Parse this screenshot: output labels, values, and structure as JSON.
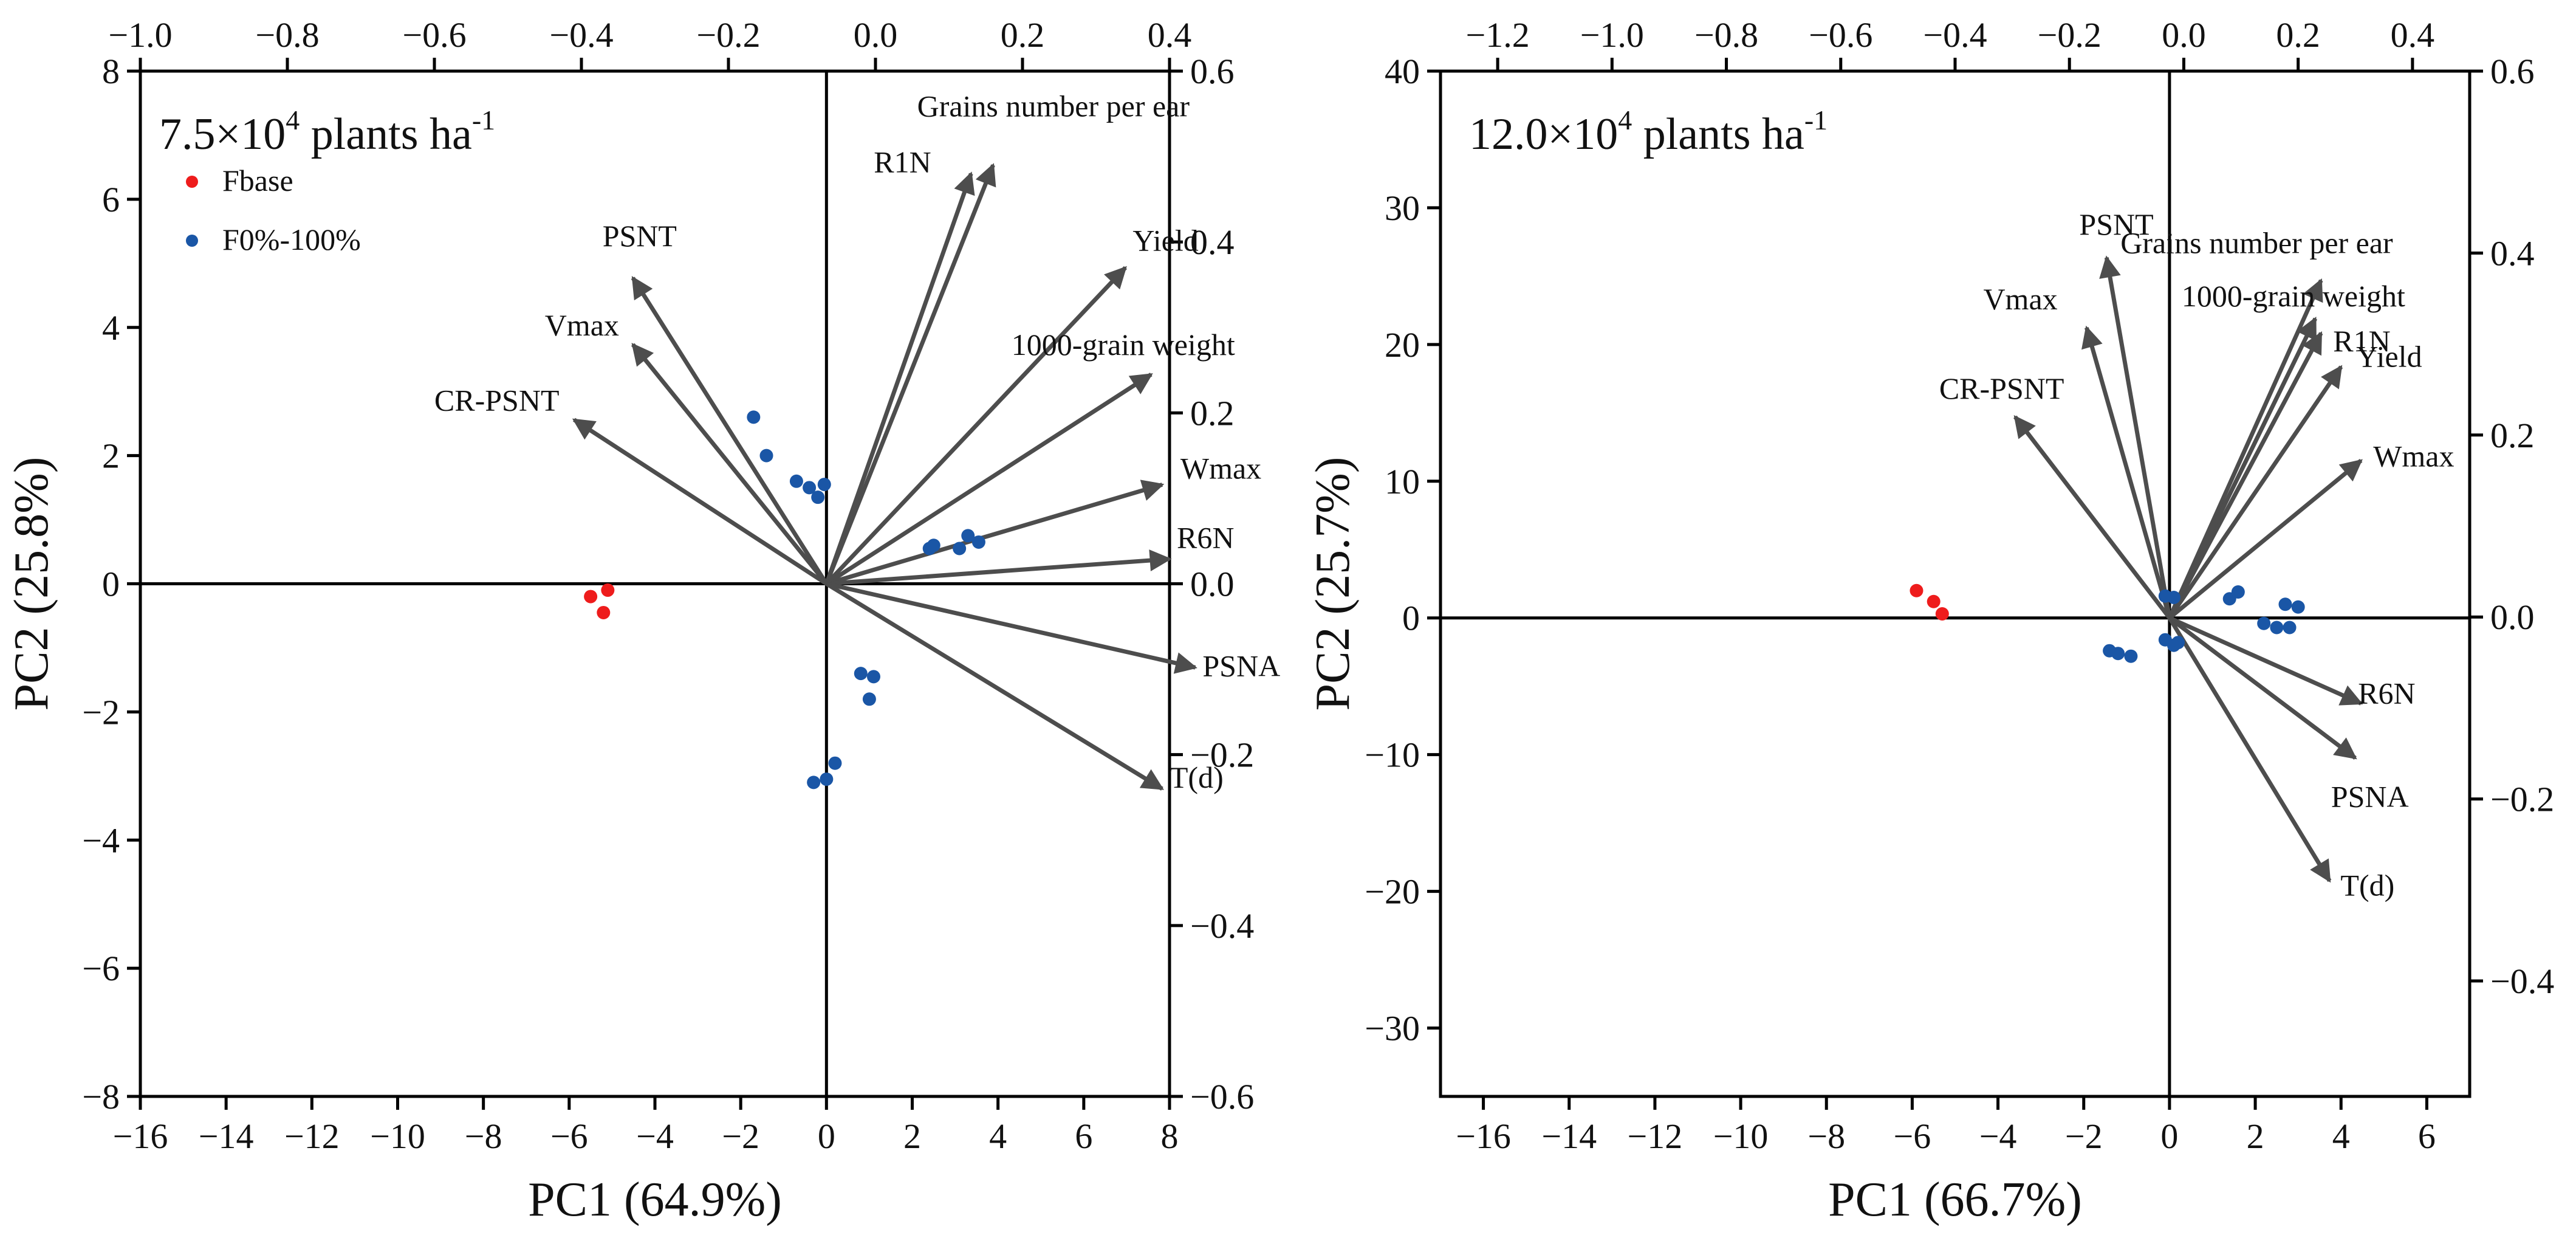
{
  "chart_data": [
    {
      "type": "scatter",
      "subtype": "PCA biplot",
      "title": {
        "prefix": "7.5×10",
        "exp": "4",
        "mid": " plants ha",
        "exp2": "-1"
      },
      "xlabel": "PC1 (64.9%)",
      "ylabel": "PC2 (25.8%)",
      "xlim": [
        -16,
        8
      ],
      "ylim": [
        -8,
        8
      ],
      "xticks": [
        -16,
        -14,
        -12,
        -10,
        -8,
        -6,
        -4,
        -2,
        0,
        2,
        4,
        6,
        8
      ],
      "yticks": [
        -8,
        -6,
        -4,
        -2,
        0,
        2,
        4,
        6,
        8
      ],
      "x2lim": [
        -1.0,
        0.4
      ],
      "x2ticks": [
        -1.0,
        -0.8,
        -0.6,
        -0.4,
        -0.2,
        0.0,
        0.2,
        0.4
      ],
      "y2lim": [
        -0.6,
        0.6
      ],
      "y2ticks": [
        -0.6,
        -0.4,
        -0.2,
        0.0,
        0.2,
        0.4,
        0.6
      ],
      "legend": {
        "position": "top-left",
        "entries": [
          {
            "label": "Fbase",
            "color": "#ee1c1c"
          },
          {
            "label": "F0%-100%",
            "color": "#1a56a6"
          }
        ]
      },
      "series": [
        {
          "name": "Fbase",
          "color": "#ee1c1c",
          "points": [
            [
              -5.5,
              -0.2
            ],
            [
              -5.1,
              -0.1
            ],
            [
              -5.2,
              -0.45
            ]
          ]
        },
        {
          "name": "F0%-100%",
          "color": "#1a56a6",
          "points": [
            [
              -1.7,
              2.6
            ],
            [
              -1.4,
              2.0
            ],
            [
              -0.7,
              1.6
            ],
            [
              -0.4,
              1.5
            ],
            [
              -0.2,
              1.35
            ],
            [
              -0.05,
              1.55
            ],
            [
              2.4,
              0.55
            ],
            [
              2.5,
              0.6
            ],
            [
              3.1,
              0.55
            ],
            [
              3.3,
              0.75
            ],
            [
              3.55,
              0.65
            ],
            [
              0.8,
              -1.4
            ],
            [
              1.1,
              -1.45
            ],
            [
              1.0,
              -1.8
            ],
            [
              -0.3,
              -3.1
            ],
            [
              0.0,
              -3.05
            ],
            [
              0.2,
              -2.8
            ]
          ]
        }
      ],
      "loadings": [
        {
          "name": "Grains number per ear",
          "x": 0.16,
          "y": 0.49
        },
        {
          "name": "R1N",
          "x": 0.13,
          "y": 0.48
        },
        {
          "name": "Yield",
          "x": 0.34,
          "y": 0.37
        },
        {
          "name": "1000-grain weight",
          "x": 0.375,
          "y": 0.245
        },
        {
          "name": "Wmax",
          "x": 0.39,
          "y": 0.116
        },
        {
          "name": "R6N",
          "x": 0.4,
          "y": 0.029
        },
        {
          "name": "PSNA",
          "x": 0.435,
          "y": -0.098
        },
        {
          "name": "T(d)",
          "x": 0.39,
          "y": -0.24
        },
        {
          "name": "PSNT",
          "x": -0.33,
          "y": 0.358
        },
        {
          "name": "Vmax",
          "x": -0.33,
          "y": 0.28
        },
        {
          "name": "CR-PSNT",
          "x": -0.41,
          "y": 0.192
        }
      ]
    },
    {
      "type": "scatter",
      "subtype": "PCA biplot",
      "title": {
        "prefix": "12.0×10",
        "exp": "4",
        "mid": " plants ha",
        "exp2": "-1"
      },
      "xlabel": "PC1 (66.7%)",
      "ylabel": "PC2 (25.7%)",
      "xlim": [
        -17,
        7
      ],
      "ylim": [
        -35,
        40
      ],
      "xticks": [
        -16,
        -14,
        -12,
        -10,
        -8,
        -6,
        -4,
        -2,
        0,
        2,
        4,
        6
      ],
      "yticks": [
        -30,
        -20,
        -10,
        0,
        10,
        20,
        30,
        40
      ],
      "x2lim": [
        -1.3,
        0.5
      ],
      "x2ticks": [
        -1.2,
        -1.0,
        -0.8,
        -0.6,
        -0.4,
        -0.2,
        0.0,
        0.2,
        0.4
      ],
      "y2lim": [
        -0.5269,
        0.6
      ],
      "y2ticks": [
        -0.4,
        -0.2,
        0.0,
        0.2,
        0.4,
        0.6
      ],
      "series": [
        {
          "name": "Fbase",
          "color": "#ee1c1c",
          "points": [
            [
              -5.9,
              2.0
            ],
            [
              -5.5,
              1.2
            ],
            [
              -5.3,
              0.3
            ]
          ]
        },
        {
          "name": "F0%-100%",
          "color": "#1a56a6",
          "points": [
            [
              -0.1,
              1.6
            ],
            [
              0.1,
              1.5
            ],
            [
              1.4,
              1.4
            ],
            [
              1.6,
              1.9
            ],
            [
              2.7,
              1.0
            ],
            [
              3.0,
              0.8
            ],
            [
              2.2,
              -0.4
            ],
            [
              2.5,
              -0.7
            ],
            [
              2.8,
              -0.7
            ],
            [
              -1.4,
              -2.4
            ],
            [
              -1.2,
              -2.6
            ],
            [
              -0.9,
              -2.8
            ],
            [
              -0.1,
              -1.6
            ],
            [
              0.2,
              -1.8
            ],
            [
              0.1,
              -2.0
            ]
          ]
        }
      ],
      "loadings": [
        {
          "name": "PSNT",
          "x": -0.135,
          "y": 0.395
        },
        {
          "name": "Vmax",
          "x": -0.17,
          "y": 0.318
        },
        {
          "name": "CR-PSNT",
          "x": -0.295,
          "y": 0.22
        },
        {
          "name": "Grains number per ear",
          "x": 0.24,
          "y": 0.37
        },
        {
          "name": "1000-grain weight",
          "x": 0.23,
          "y": 0.328
        },
        {
          "name": "R1N",
          "x": 0.24,
          "y": 0.312
        },
        {
          "name": "Yield",
          "x": 0.275,
          "y": 0.275
        },
        {
          "name": "Wmax",
          "x": 0.31,
          "y": 0.172
        },
        {
          "name": "R6N",
          "x": 0.31,
          "y": -0.095
        },
        {
          "name": "PSNA",
          "x": 0.3,
          "y": -0.155
        },
        {
          "name": "T(d)",
          "x": 0.255,
          "y": -0.29
        }
      ]
    }
  ]
}
